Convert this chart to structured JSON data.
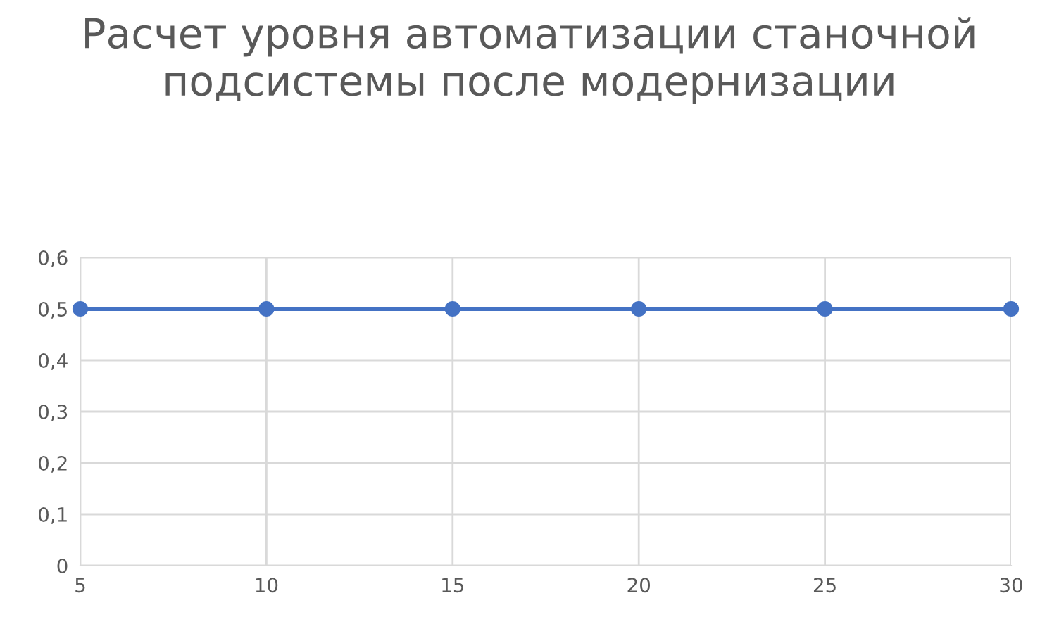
{
  "chart_data": {
    "type": "line",
    "title": "Расчет уровня автоматизации станочной подсистемы после модернизации",
    "x": [
      5,
      10,
      15,
      20,
      25,
      30
    ],
    "series": [
      {
        "color": "#4472c4",
        "values": [
          0.5,
          0.5,
          0.5,
          0.5,
          0.5,
          0.5
        ]
      }
    ],
    "xlim": [
      5,
      30
    ],
    "xticks": [
      5,
      10,
      15,
      20,
      25,
      30
    ],
    "ylim": [
      0,
      0.6
    ],
    "yticks": [
      0,
      {
        "value": 0.1,
        "label": "0,1"
      },
      {
        "value": 0.2,
        "label": "0,2"
      },
      {
        "value": 0.3,
        "label": "0,3"
      },
      {
        "value": 0.4,
        "label": "0,4"
      },
      {
        "value": 0.5,
        "label": "0,5"
      },
      {
        "value": 0.6,
        "label": "0,6"
      }
    ],
    "grid": true,
    "marker": "circle",
    "line_style": "solid",
    "legend": false
  }
}
